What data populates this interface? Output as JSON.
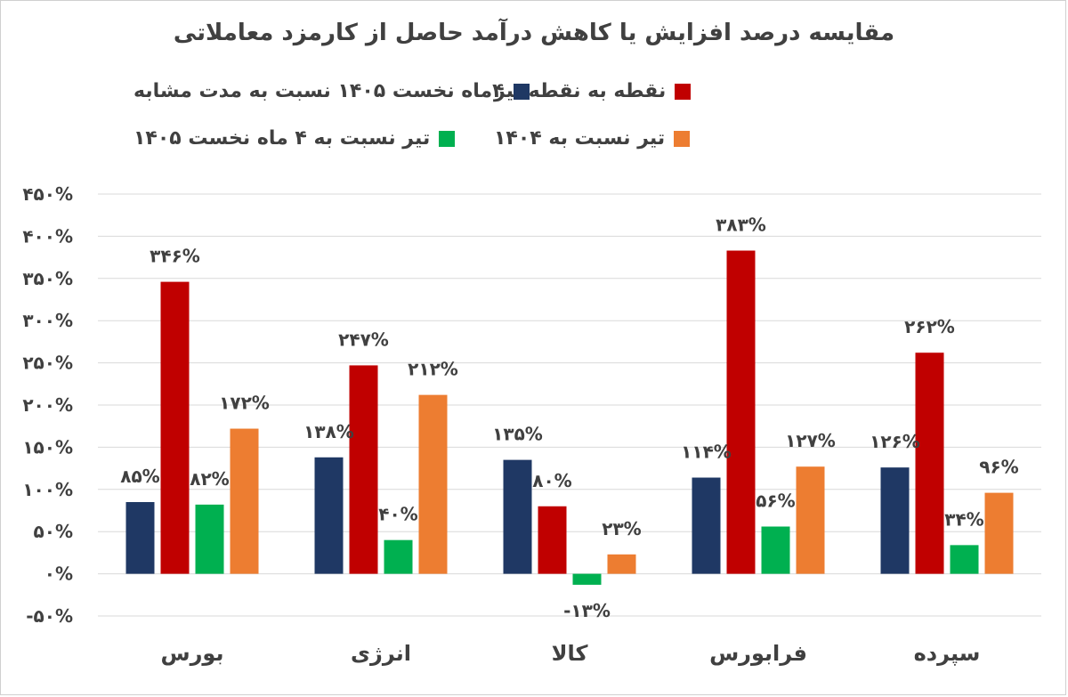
{
  "chart_data": {
    "type": "bar",
    "title": "مقایسه درصد افزایش یا کاهش درآمد حاصل از کارمزد معاملاتی",
    "categories": [
      "بورس",
      "انرژی",
      "کالا",
      "فرابورس",
      "سپرده"
    ],
    "series": [
      {
        "name": "۴ماه نخست ۱۴۰۵ نسبت به مدت مشابه",
        "color": "#1f3864",
        "values": [
          85,
          138,
          135,
          114,
          126
        ],
        "labels": [
          "۸۵%",
          "۱۳۸%",
          "۱۳۵%",
          "۱۱۴%",
          "۱۲۶%"
        ]
      },
      {
        "name": "نقطه به نقطه تیر",
        "color": "#c00000",
        "values": [
          346,
          247,
          80,
          383,
          262
        ],
        "labels": [
          "۳۴۶%",
          "۲۴۷%",
          "۸۰%",
          "۳۸۳%",
          "۲۶۲%"
        ]
      },
      {
        "name": "تیر نسبت به ۴ ماه نخست ۱۴۰۵",
        "color": "#00b050",
        "values": [
          82,
          40,
          -13,
          56,
          34
        ],
        "labels": [
          "۸۲%",
          "۴۰%",
          "-۱۳%",
          "۵۶%",
          "۳۴%"
        ]
      },
      {
        "name": "تیر نسبت به ۱۴۰۴",
        "color": "#ed7d31",
        "values": [
          172,
          212,
          23,
          127,
          96
        ],
        "labels": [
          "۱۷۲%",
          "۲۱۲%",
          "۲۳%",
          "۱۲۷%",
          "۹۶%"
        ]
      }
    ],
    "ylim": [
      -50,
      450
    ],
    "yticks": [
      -50,
      0,
      50,
      100,
      150,
      200,
      250,
      300,
      350,
      400,
      450
    ],
    "ytick_labels": [
      "-۵۰%",
      "۰%",
      "۵۰%",
      "۱۰۰%",
      "۱۵۰%",
      "۲۰۰%",
      "۲۵۰%",
      "۳۰۰%",
      "۳۵۰%",
      "۴۰۰%",
      "۴۵۰%"
    ],
    "grid": true,
    "legend_position": "top",
    "xlabel": "",
    "ylabel": ""
  }
}
